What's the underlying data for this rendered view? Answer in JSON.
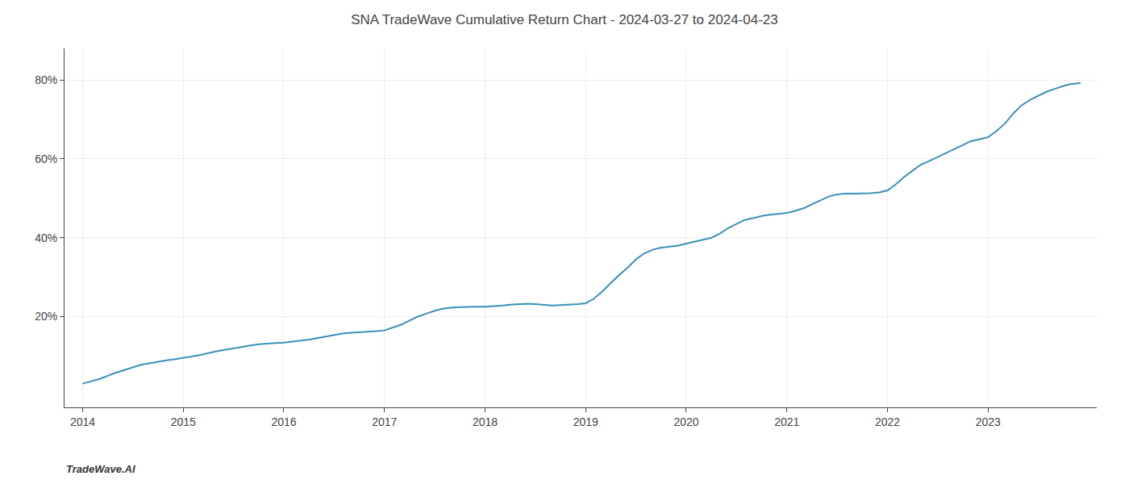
{
  "chart_data": {
    "type": "line",
    "title": "SNA TradeWave Cumulative Return Chart - 2024-03-27 to 2024-04-23",
    "annotations": [
      "TradeWave.AI"
    ],
    "color": "#3a90b8",
    "x": [
      2014.0,
      2014.08,
      2014.17,
      2014.25,
      2014.33,
      2014.42,
      2014.5,
      2014.58,
      2014.67,
      2014.75,
      2014.83,
      2014.92,
      2015.0,
      2015.08,
      2015.17,
      2015.25,
      2015.33,
      2015.42,
      2015.5,
      2015.58,
      2015.67,
      2015.75,
      2015.83,
      2015.92,
      2016.0,
      2016.08,
      2016.17,
      2016.25,
      2016.33,
      2016.42,
      2016.5,
      2016.58,
      2016.67,
      2016.75,
      2016.83,
      2016.92,
      2017.0,
      2017.08,
      2017.17,
      2017.25,
      2017.33,
      2017.42,
      2017.5,
      2017.58,
      2017.67,
      2017.75,
      2017.83,
      2017.92,
      2018.0,
      2018.08,
      2018.17,
      2018.25,
      2018.33,
      2018.42,
      2018.5,
      2018.58,
      2018.67,
      2018.75,
      2018.83,
      2018.92,
      2019.0,
      2019.08,
      2019.17,
      2019.25,
      2019.33,
      2019.42,
      2019.5,
      2019.58,
      2019.67,
      2019.75,
      2019.83,
      2019.92,
      2020.0,
      2020.08,
      2020.17,
      2020.25,
      2020.33,
      2020.42,
      2020.5,
      2020.58,
      2020.67,
      2020.75,
      2020.83,
      2020.92,
      2021.0,
      2021.08,
      2021.17,
      2021.25,
      2021.33,
      2021.42,
      2021.5,
      2021.58,
      2021.67,
      2021.75,
      2021.83,
      2021.92,
      2022.0,
      2022.08,
      2022.17,
      2022.25,
      2022.33,
      2022.42,
      2022.5,
      2022.58,
      2022.67,
      2022.75,
      2022.83,
      2022.92,
      2023.0,
      2023.08,
      2023.17,
      2023.25,
      2023.33,
      2023.42,
      2023.5,
      2023.58,
      2023.67,
      2023.75,
      2023.83,
      2023.92
    ],
    "values": [
      3.0,
      3.5,
      4.2,
      5.0,
      5.8,
      6.5,
      7.2,
      7.8,
      8.2,
      8.6,
      8.9,
      9.2,
      9.5,
      9.9,
      10.3,
      10.8,
      11.2,
      11.6,
      12.0,
      12.4,
      12.7,
      13.0,
      13.2,
      13.3,
      13.4,
      13.6,
      13.9,
      14.2,
      14.6,
      15.0,
      15.4,
      15.7,
      15.9,
      16.0,
      16.1,
      16.3,
      16.5,
      17.2,
      18.0,
      19.0,
      20.0,
      20.8,
      21.5,
      22.0,
      22.3,
      22.4,
      22.5,
      22.5,
      22.5,
      22.6,
      22.8,
      23.0,
      23.2,
      23.3,
      23.2,
      23.0,
      22.8,
      22.9,
      23.0,
      23.2,
      23.4,
      24.5,
      26.5,
      28.5,
      30.5,
      32.5,
      34.5,
      36.0,
      37.0,
      37.5,
      37.8,
      38.0,
      38.5,
      39.0,
      39.5,
      40.0,
      41.0,
      42.5,
      43.5,
      44.5,
      45.0,
      45.5,
      45.8,
      46.0,
      46.3,
      46.8,
      47.5,
      48.5,
      49.5,
      50.5,
      51.0,
      51.2,
      51.2,
      51.2,
      51.3,
      51.5,
      52.0,
      53.5,
      55.5,
      57.0,
      58.5,
      59.5,
      60.5,
      61.5,
      62.5,
      63.5,
      64.5,
      65.0,
      65.5,
      67.0,
      69.0,
      71.5,
      73.5,
      75.0,
      76.0,
      77.0,
      77.8,
      78.5,
      79.0,
      79.2
    ],
    "xlim": [
      2013.82,
      2024.08
    ],
    "ylim": [
      -3,
      88
    ],
    "xticks": [
      2014,
      2015,
      2016,
      2017,
      2018,
      2019,
      2020,
      2021,
      2022,
      2023
    ],
    "yticks": [
      {
        "value": 20,
        "label": "20%"
      },
      {
        "value": 40,
        "label": "40%"
      },
      {
        "value": 60,
        "label": "60%"
      },
      {
        "value": 80,
        "label": "80%"
      }
    ],
    "grid": true
  }
}
